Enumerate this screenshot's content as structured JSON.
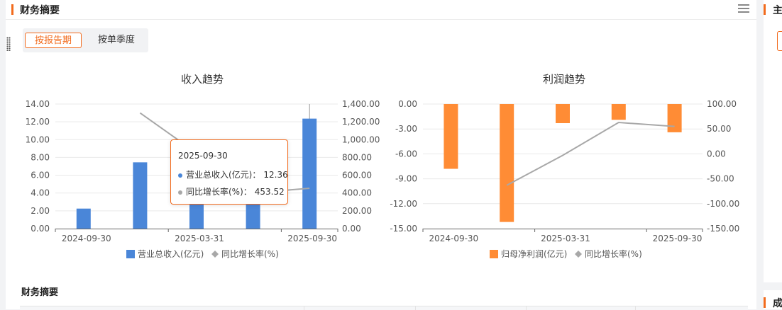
{
  "header": {
    "title": "财务摘要"
  },
  "tabs": [
    {
      "label": "按报告期",
      "active": true
    },
    {
      "label": "按单季度",
      "active": false
    }
  ],
  "section_title": "财务摘要",
  "side_panels": [
    {
      "title": "主"
    },
    {
      "title": "成"
    }
  ],
  "colors": {
    "accent": "#f26b1d",
    "revenue_bar": "#4a86d8",
    "profit_bar": "#ff8c35",
    "growth_line": "#a8a8a8"
  },
  "tooltip": {
    "date": "2025-09-30",
    "rows": [
      {
        "label": "营业总收入(亿元)：",
        "value": "12.36",
        "color": "#4a86d8"
      },
      {
        "label": "同比增长率(%)：",
        "value": "453.52",
        "color": "#a8a8a8"
      }
    ]
  },
  "chart_data": [
    {
      "type": "bar",
      "title": "收入趋势",
      "x_tick_labels": [
        "2024-09-30",
        "2025-03-31",
        "2025-09-30"
      ],
      "bar_count": 5,
      "left_axis": {
        "ylim": [
          0,
          14
        ],
        "ticks": [
          "14.00",
          "12.00",
          "10.00",
          "8.00",
          "6.00",
          "4.00",
          "2.00",
          "0.00"
        ]
      },
      "right_axis": {
        "ylim": [
          0,
          1400
        ],
        "ticks": [
          "1,400.00",
          "1,200.00",
          "1,000.00",
          "800.00",
          "600.00",
          "400.00",
          "200.00",
          "0.00"
        ]
      },
      "series": [
        {
          "name": "营业总收入(亿元)",
          "type": "bar",
          "axis": "left",
          "color": "#4a86d8",
          "values": [
            2.25,
            7.45,
            3.2,
            3.3,
            12.36
          ]
        },
        {
          "name": "同比增长率(%)",
          "type": "line",
          "axis": "right",
          "color": "#a8a8a8",
          "values": [
            null,
            1300,
            850,
            400,
            453.52
          ]
        }
      ],
      "legend_position": "bottom",
      "highlight_index": 4
    },
    {
      "type": "bar",
      "title": "利润趋势",
      "x_tick_labels": [
        "2024-09-30",
        "2025-03-31",
        "2025-09-30"
      ],
      "bar_count": 5,
      "left_axis": {
        "ylim": [
          -15,
          0
        ],
        "ticks": [
          "0.00",
          "-3.00",
          "-6.00",
          "-9.00",
          "-12.00",
          "-15.00"
        ]
      },
      "right_axis": {
        "ylim": [
          -150,
          100
        ],
        "ticks": [
          "100.00",
          "50.00",
          "0.00",
          "-50.00",
          "-100.00",
          "-150.00"
        ]
      },
      "series": [
        {
          "name": "归母净利润(亿元)",
          "type": "bar",
          "axis": "left",
          "color": "#ff8c35",
          "values": [
            -7.8,
            -14.2,
            -2.3,
            -1.9,
            -3.4
          ]
        },
        {
          "name": "同比增长率(%)",
          "type": "line",
          "axis": "right",
          "color": "#a8a8a8",
          "values": [
            null,
            -63,
            -3,
            63,
            55
          ]
        }
      ],
      "legend_position": "bottom"
    }
  ]
}
